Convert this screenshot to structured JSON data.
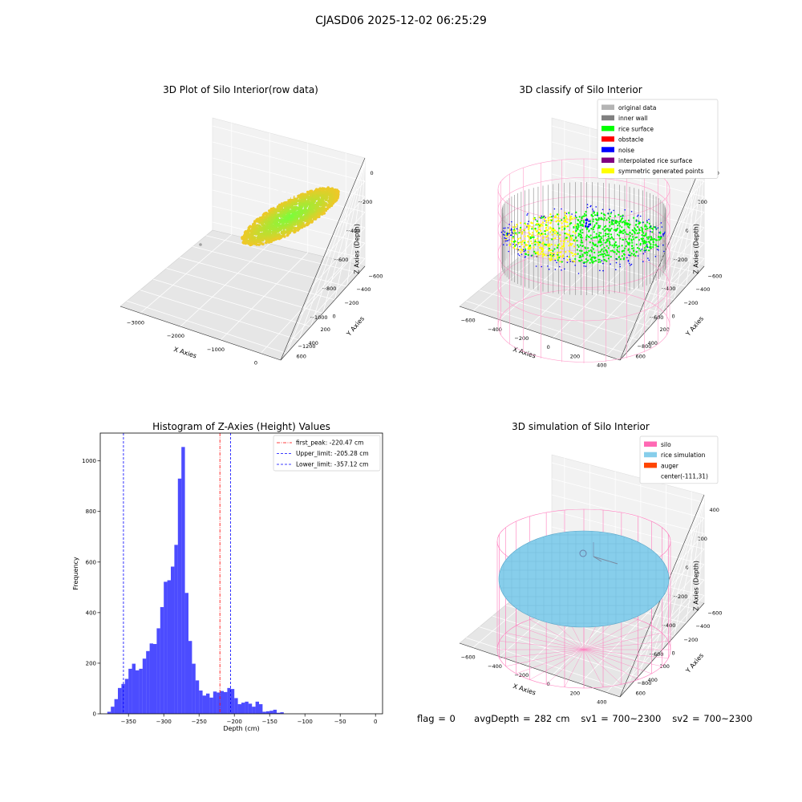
{
  "figure": {
    "suptitle": "CJASD06 2025-12-02 06:25:29",
    "footer": {
      "flag": "flag = 0",
      "avgDepth": "avgDepth = 282 cm",
      "sv1": "sv1 = 700~2300",
      "sv2": "sv2 = 700~2300"
    }
  },
  "panels": {
    "raw": {
      "title": "3D Plot of Silo Interior(row data)",
      "xlabel": "X Axies",
      "ylabel": "Y Axies",
      "zlabel": "Z Axies (Depth)",
      "xticks": [
        "−3000",
        "−2000",
        "−1000",
        "0"
      ],
      "yticks": [
        "−600",
        "−400",
        "−200",
        "0",
        "200",
        "400",
        "600"
      ],
      "zticks": [
        "0",
        "−200",
        "−400",
        "−600",
        "−800",
        "−1000",
        "−1200"
      ]
    },
    "classify": {
      "title": "3D classify of Silo Interior",
      "xlabel": "X Axies",
      "ylabel": "Y Axies",
      "zlabel": "Z Axies (Depth)",
      "xticks": [
        "−600",
        "−400",
        "−200",
        "0",
        "200",
        "400"
      ],
      "yticks": [
        "−600",
        "−400",
        "−200",
        "0",
        "200",
        "400",
        "600"
      ],
      "zticks": [
        "400",
        "200",
        "0",
        "−200",
        "−400",
        "−600",
        "−800"
      ],
      "legend": [
        {
          "label": "original data",
          "color": "#b4b4b4"
        },
        {
          "label": "inner wall",
          "color": "#808080"
        },
        {
          "label": "rice surface",
          "color": "#00ff00"
        },
        {
          "label": "obstacle",
          "color": "#ff0000"
        },
        {
          "label": "noise",
          "color": "#0000ff"
        },
        {
          "label": "interpolated rice surface",
          "color": "#800080"
        },
        {
          "label": "symmetric generated points",
          "color": "#ffff00"
        }
      ]
    },
    "simulation": {
      "title": "3D simulation of Silo Interior",
      "xlabel": "X Axies",
      "ylabel": "Y Axies",
      "zlabel": "Z Axies (Depth)",
      "xticks": [
        "−600",
        "−400",
        "−200",
        "0",
        "200",
        "400"
      ],
      "yticks": [
        "−600",
        "−400",
        "−200",
        "0",
        "200",
        "400",
        "600"
      ],
      "zticks": [
        "400",
        "200",
        "0",
        "−200",
        "−400",
        "−600",
        "−800"
      ],
      "legend": [
        {
          "label": "silo",
          "color": "#ff69b4"
        },
        {
          "label": "rice simulation",
          "color": "#87ceeb"
        },
        {
          "label": "auger",
          "color": "#ff4500"
        },
        {
          "label": "center(-111,31)",
          "color": ""
        }
      ]
    }
  },
  "colors": {
    "hist_bar": "#0000ff",
    "first_peak": "#ff0000",
    "limits": "#0000ff",
    "silo": "#ff69b4",
    "rice": "#87ceeb",
    "rice_surface": "#00ff00",
    "symmetric": "#ffff00",
    "noise": "#0000ff",
    "inner_wall": "#808080"
  },
  "chart_data": {
    "type": "bar",
    "title": "Histogram of Z-Axies (Height) Values",
    "xlabel": "Depth (cm)",
    "ylabel": "Frequency",
    "xlim": [
      -390,
      10
    ],
    "ylim": [
      0,
      1110
    ],
    "xticks": [
      -350,
      -300,
      -250,
      -200,
      -150,
      -100,
      -50,
      0
    ],
    "yticks": [
      0,
      200,
      400,
      600,
      800,
      1000
    ],
    "bins": {
      "start": -380,
      "width": 5,
      "values": [
        8,
        28,
        58,
        102,
        118,
        138,
        178,
        198,
        172,
        178,
        218,
        248,
        278,
        276,
        338,
        422,
        522,
        528,
        582,
        668,
        930,
        1055,
        478,
        288,
        198,
        132,
        92,
        72,
        80,
        64,
        88,
        84,
        90,
        86,
        102,
        98,
        62,
        38,
        44,
        48,
        40,
        28,
        48,
        38,
        8,
        10,
        12,
        16,
        4,
        6
      ]
    },
    "vlines": [
      {
        "label": "first_peak: -220.47 cm",
        "x": -220.47,
        "style": "dashdot",
        "color": "#ff0000"
      },
      {
        "label": "Upper_limit: -205.28 cm",
        "x": -205.28,
        "style": "dashed",
        "color": "#0000ff"
      },
      {
        "label": "Lower_limit: -357.12 cm",
        "x": -357.12,
        "style": "dashed",
        "color": "#0000ff"
      }
    ],
    "legend_position": "upper right"
  }
}
